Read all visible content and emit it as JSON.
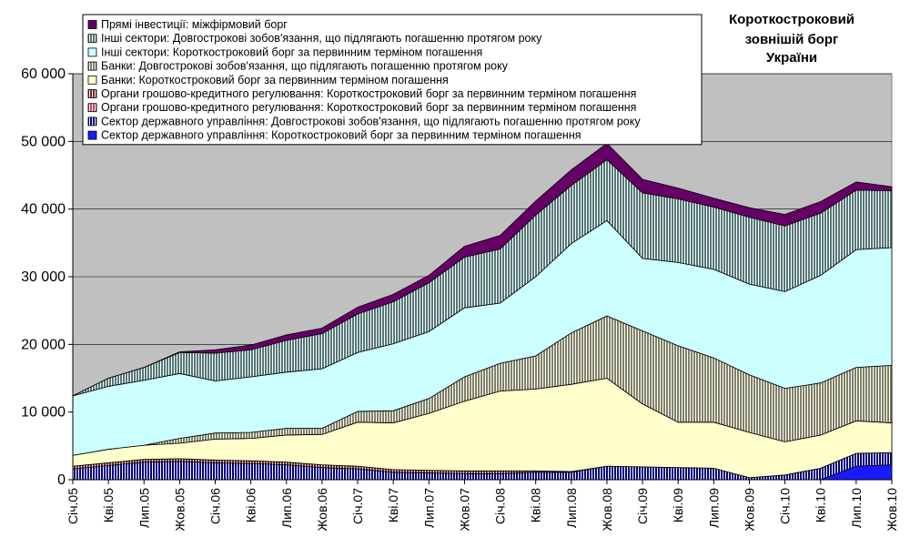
{
  "chart_data": {
    "type": "area",
    "stacked": true,
    "title": [
      "Короткостроковий",
      "зовнішій борг",
      "України"
    ],
    "xlabel": "",
    "ylabel": "",
    "ylim": [
      0,
      60000
    ],
    "yticks": [
      0,
      10000,
      20000,
      30000,
      40000,
      50000,
      60000
    ],
    "ytick_labels": [
      "0",
      "10 000",
      "20 000",
      "30 000",
      "40 000",
      "50 000",
      "60 000"
    ],
    "categories": [
      "Січ.05",
      "Кві.05",
      "Лип.05",
      "Жов.05",
      "Січ.06",
      "Кві.06",
      "Лип.06",
      "Жов.06",
      "Січ.07",
      "Кві.07",
      "Лип.07",
      "Жов.07",
      "Січ.08",
      "Кві.08",
      "Лип.08",
      "Жов.08",
      "Січ.09",
      "Кві.09",
      "Лип.09",
      "Жов.09",
      "Січ.10",
      "Кві.10",
      "Лип.10",
      "Жов.10"
    ],
    "grid": true,
    "plot_background": "#c0c0c0",
    "legend_position": "top-left",
    "series": [
      {
        "name": "Сектор державного управління:   Короткостроковий борг за первинним терміном погашення",
        "color": "#1a1aff",
        "pattern": "solid",
        "values": [
          0,
          0,
          0,
          0,
          0,
          0,
          0,
          0,
          0,
          0,
          0,
          0,
          0,
          0,
          0,
          0,
          0,
          0,
          0,
          0,
          0,
          0,
          2000,
          2200
        ]
      },
      {
        "name": "Сектор державного управління:   Довгострокові зобов'язання, що підлягають погашенню протягом року",
        "color": "#000080",
        "pattern": "hatch",
        "values": [
          1600,
          2100,
          2600,
          2700,
          2500,
          2400,
          2200,
          1800,
          1600,
          1100,
          1000,
          900,
          900,
          1100,
          1100,
          2000,
          1900,
          1800,
          1700,
          300,
          700,
          1700,
          1900,
          1800
        ]
      },
      {
        "name": "Органи грошово-кредитного регулювання:   Короткостроковий борг за первинним терміном погашення",
        "color": "#c04070",
        "pattern": "hatch",
        "values": [
          0,
          0,
          0,
          0,
          0,
          0,
          0,
          0,
          0,
          0,
          0,
          0,
          0,
          0,
          0,
          0,
          0,
          0,
          0,
          0,
          0,
          0,
          0,
          0
        ]
      },
      {
        "name": "Органи грошово-кредитного регулювання:   Короткостроковий борг за первинним терміном погашення",
        "color": "#7a2020",
        "pattern": "hatch",
        "values": [
          400,
          400,
          400,
          400,
          400,
          400,
          400,
          400,
          400,
          400,
          400,
          400,
          400,
          200,
          100,
          0,
          0,
          0,
          0,
          0,
          0,
          0,
          0,
          0
        ]
      },
      {
        "name": "Банки:   Короткостроковий борг за первинним терміном погашення",
        "color": "#ffffcc",
        "pattern": "solid",
        "values": [
          1600,
          2000,
          2100,
          2300,
          3100,
          3300,
          4000,
          4500,
          6500,
          6900,
          8400,
          10300,
          11800,
          12100,
          12900,
          13000,
          9300,
          6700,
          6800,
          6700,
          4900,
          4900,
          4800,
          4400
        ]
      },
      {
        "name": "Банки:   Довгострокові зобов'язання, що підлягають погашенню протягом року",
        "color": "#808066",
        "pattern": "hatch",
        "values": [
          0,
          0,
          0,
          700,
          900,
          900,
          1000,
          900,
          1600,
          1800,
          2200,
          3600,
          4100,
          4900,
          7600,
          9200,
          10800,
          11300,
          9500,
          8500,
          7900,
          7700,
          7900,
          8500
        ]
      },
      {
        "name": "Інші сектори:   Короткостроковий борг за первинним терміном погашення",
        "color": "#ccffff",
        "pattern": "solid",
        "values": [
          8800,
          9300,
          9600,
          9600,
          7700,
          8200,
          8300,
          8800,
          8700,
          9900,
          9900,
          10200,
          8900,
          11700,
          13200,
          14100,
          10700,
          12300,
          13100,
          13400,
          14300,
          15900,
          17400,
          17400
        ]
      },
      {
        "name": "Інші сектори:   Довгострокові зобов'язання, що підлягають погашенню протягом року",
        "color": "#557777",
        "pattern": "hatch",
        "values": [
          0,
          1200,
          1900,
          3100,
          4100,
          4000,
          4700,
          5200,
          5700,
          6200,
          7200,
          7500,
          8000,
          9100,
          8600,
          9000,
          9700,
          9400,
          9200,
          9900,
          9700,
          9200,
          8800,
          8400
        ]
      },
      {
        "name": "Прямі інвестиції: міжфірмовий борг",
        "color": "#660066",
        "pattern": "solid",
        "values": [
          0,
          0,
          0,
          100,
          500,
          700,
          800,
          800,
          1000,
          1100,
          1100,
          1600,
          2000,
          2100,
          2300,
          2400,
          2000,
          1600,
          1300,
          1400,
          1700,
          1700,
          1200,
          600
        ]
      }
    ]
  }
}
